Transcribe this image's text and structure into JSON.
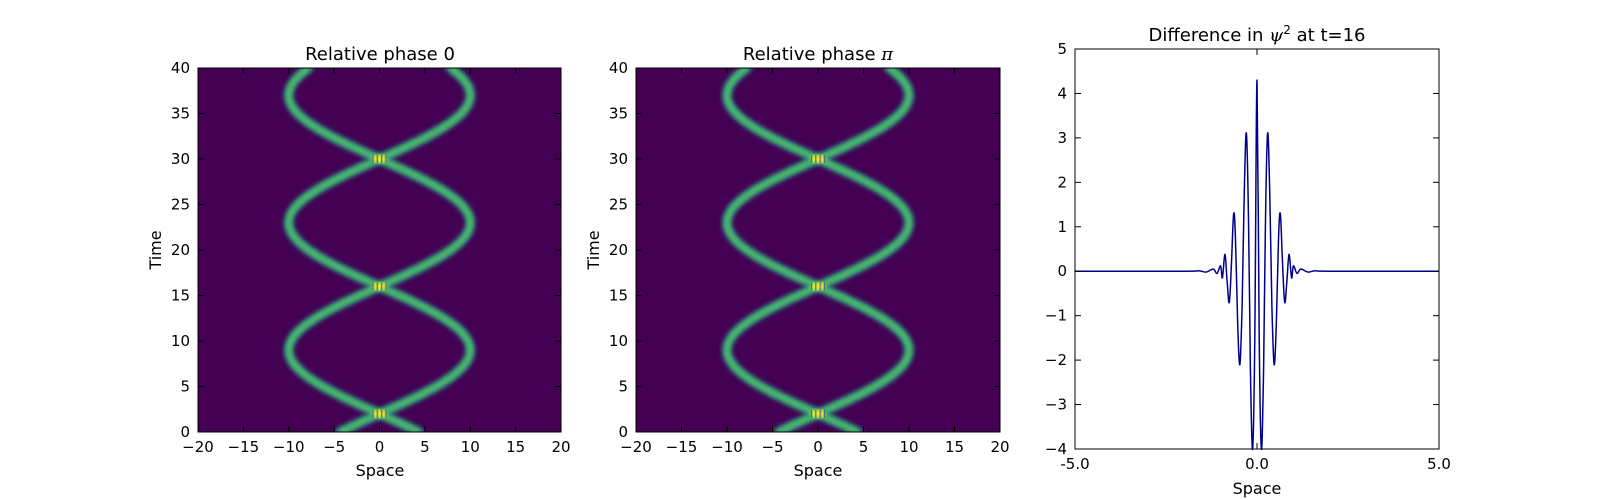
{
  "chart_data": [
    {
      "type": "heatmap",
      "title": "Relative phase 0",
      "xlabel": "Space",
      "ylabel": "Time",
      "xlim": [
        -20,
        20
      ],
      "ylim": [
        0,
        40
      ],
      "xticks": [
        -20,
        -15,
        -10,
        -5,
        0,
        5,
        10,
        15,
        20
      ],
      "xtick_labels": [
        "−20",
        "−15",
        "−10",
        "−5",
        "0",
        "5",
        "10",
        "15",
        "20"
      ],
      "yticks": [
        0,
        5,
        10,
        15,
        20,
        25,
        30,
        35,
        40
      ],
      "ytick_labels": [
        "0",
        "5",
        "10",
        "15",
        "20",
        "25",
        "30",
        "35",
        "40"
      ],
      "colormap": "viridis",
      "background_color": "#440154",
      "description_values": {
        "oscillation_amplitude": 10,
        "oscillation_period": 28,
        "collision_times": [
          2,
          16,
          30
        ]
      }
    },
    {
      "type": "heatmap",
      "title": "Relative phase ",
      "title_math": "π",
      "xlabel": "Space",
      "ylabel": "Time",
      "xlim": [
        -20,
        20
      ],
      "ylim": [
        0,
        40
      ],
      "xticks": [
        -20,
        -15,
        -10,
        -5,
        0,
        5,
        10,
        15,
        20
      ],
      "xtick_labels": [
        "−20",
        "−15",
        "−10",
        "−5",
        "0",
        "5",
        "10",
        "15",
        "20"
      ],
      "yticks": [
        0,
        5,
        10,
        15,
        20,
        25,
        30,
        35,
        40
      ],
      "ytick_labels": [
        "0",
        "5",
        "10",
        "15",
        "20",
        "25",
        "30",
        "35",
        "40"
      ],
      "colormap": "viridis",
      "background_color": "#440154",
      "description_values": {
        "oscillation_amplitude": 10,
        "oscillation_period": 28,
        "collision_times": [
          2,
          16,
          30
        ]
      }
    },
    {
      "type": "line",
      "title": "Difference in ",
      "title_math": "ψ",
      "title_sup": "2",
      "title_suffix": " at t=16",
      "xlabel": "Space",
      "ylabel": "",
      "xlim": [
        -5,
        5
      ],
      "ylim": [
        -4,
        5
      ],
      "xticks": [
        -5,
        0,
        5
      ],
      "xtick_labels": [
        "-5.0",
        "0.0",
        "5.0"
      ],
      "yticks": [
        -4,
        -3,
        -2,
        -1,
        0,
        1,
        2,
        3,
        4,
        5
      ],
      "ytick_labels": [
        "−4",
        "−3",
        "−2",
        "−1",
        "0",
        "1",
        "2",
        "3",
        "4",
        "5"
      ],
      "series": [
        {
          "color": "#00008b",
          "x": [
            -5,
            -2.0,
            -1.6,
            -1.4,
            -1.2,
            -1.1,
            -1.0,
            -0.95,
            -0.88,
            -0.82,
            -0.76,
            -0.7,
            -0.64,
            -0.59,
            -0.53,
            -0.47,
            -0.41,
            -0.35,
            -0.29,
            -0.23,
            -0.18,
            -0.12,
            -0.06,
            0.0,
            0.06,
            0.12,
            0.18,
            0.23,
            0.29,
            0.35,
            0.41,
            0.47,
            0.53,
            0.59,
            0.64,
            0.7,
            0.76,
            0.82,
            0.88,
            0.95,
            1.0,
            1.1,
            1.2,
            1.4,
            1.6,
            2.0,
            5
          ],
          "y": [
            0,
            0,
            0.01,
            -0.02,
            0.05,
            -0.05,
            0.12,
            -0.15,
            0.38,
            -0.25,
            -0.7,
            0.2,
            1.3,
            0.7,
            -1.2,
            -2.1,
            -0.8,
            1.8,
            3.1,
            1.0,
            -2.2,
            -4.0,
            -1.5,
            4.3,
            -1.5,
            -4.0,
            -2.2,
            1.0,
            3.1,
            1.8,
            -0.8,
            -2.1,
            -1.2,
            0.7,
            1.3,
            0.2,
            -0.7,
            -0.25,
            0.38,
            -0.15,
            0.12,
            -0.05,
            0.05,
            -0.02,
            0.01,
            0,
            0
          ]
        }
      ]
    }
  ]
}
